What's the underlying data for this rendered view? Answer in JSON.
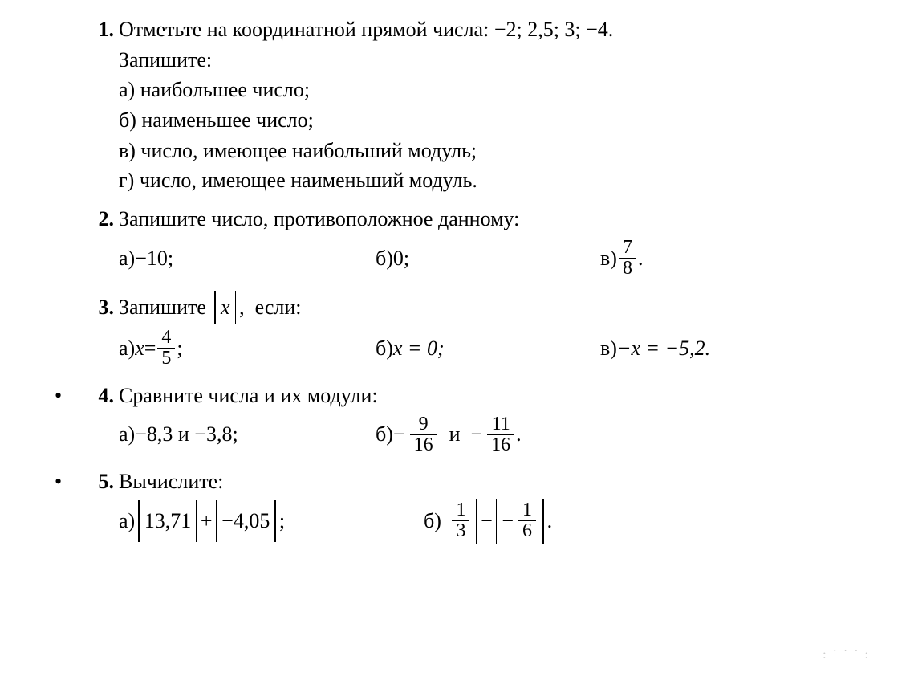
{
  "p1": {
    "num": "1.",
    "text1a": "Отметьте на координатной прямой числа: ",
    "text1b": "−2; 2,5; 3; −4.",
    "text2": "Запишите:",
    "a": "а) наибольшее число;",
    "b": "б) наименьшее число;",
    "c": "в) число, имеющее наибольший модуль;",
    "d": "г) число, имеющее наименьший модуль."
  },
  "p2": {
    "num": "2.",
    "text": "Запишите число, противоположное данному:",
    "a_label": "а) ",
    "a_val": "−10;",
    "b_label": "б) ",
    "b_val": "0;",
    "c_label": "в) ",
    "c_num": "7",
    "c_den": "8",
    "c_end": "."
  },
  "p3": {
    "num": "3.",
    "text_pre": "Запишите ",
    "abs_x": "x",
    "text_post": ",  если:",
    "a_label": "а) ",
    "a_x": "x",
    "a_eq": " = ",
    "a_num": "4",
    "a_den": "5",
    "a_end": ";",
    "b_label": "б) ",
    "b_body": "x = 0;",
    "c_label": "в) ",
    "c_body": "−x = −5,2."
  },
  "p4": {
    "num": "4.",
    "text": "Сравните числа и их модули:",
    "a_label": "а) ",
    "a_body": "−8,3 и −3,8;",
    "b_label": "б) ",
    "b_f1_num": "9",
    "b_f1_den": "16",
    "b_and": "  и  ",
    "b_f2_num": "11",
    "b_f2_den": "16",
    "b_end": "."
  },
  "p5": {
    "num": "5.",
    "text": "Вычислите:",
    "a_label": "а) ",
    "a_abs1": "13,71",
    "a_plus": " + ",
    "a_abs2": "−4,05",
    "a_end": ";",
    "b_label": "б) ",
    "b_f1_num": "1",
    "b_f1_den": "3",
    "b_minus": " − ",
    "b_f2_num": "1",
    "b_f2_den": "6",
    "b_end": "."
  },
  "faint": ": ˙ ˙ ˙ :"
}
